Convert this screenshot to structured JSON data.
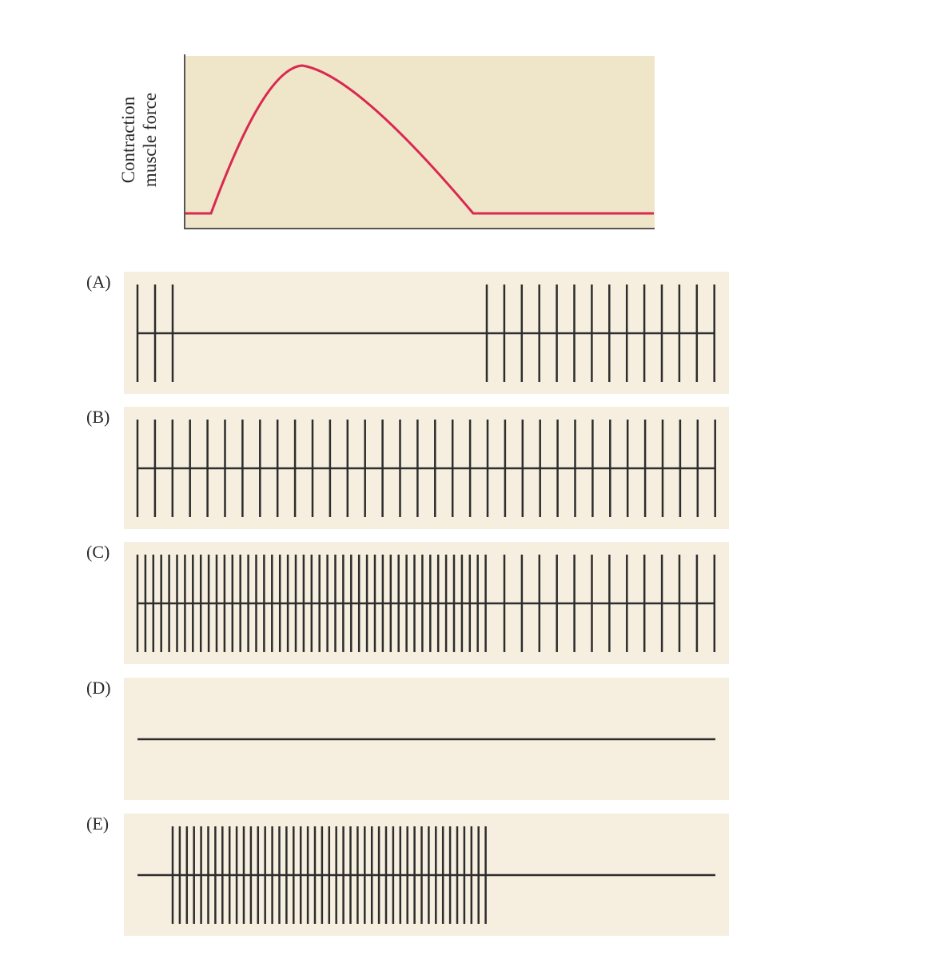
{
  "force_chart": {
    "ylabel_line1": "Contraction",
    "ylabel_line2": "muscle force",
    "plot_bg": "#efe5c9",
    "curve_color": "#d9294f",
    "axis_color": "#555555"
  },
  "spike_color": "#2d2d2d",
  "panel_bg": "#f6efe0",
  "panels": [
    {
      "label": "(A)",
      "spike_groups": [
        {
          "count": 3,
          "spacing": "wide"
        },
        {
          "count": 14,
          "spacing": "wide"
        }
      ]
    },
    {
      "label": "(B)",
      "spike_groups": [
        {
          "count": 34,
          "spacing": "wide"
        }
      ]
    },
    {
      "label": "(C)",
      "spike_groups": [
        {
          "count": 45,
          "spacing": "dense"
        },
        {
          "count": 13,
          "spacing": "wide"
        }
      ]
    },
    {
      "label": "(D)",
      "spike_groups": []
    },
    {
      "label": "(E)",
      "spike_groups": [
        {
          "count": 45,
          "spacing": "dense"
        }
      ]
    }
  ]
}
